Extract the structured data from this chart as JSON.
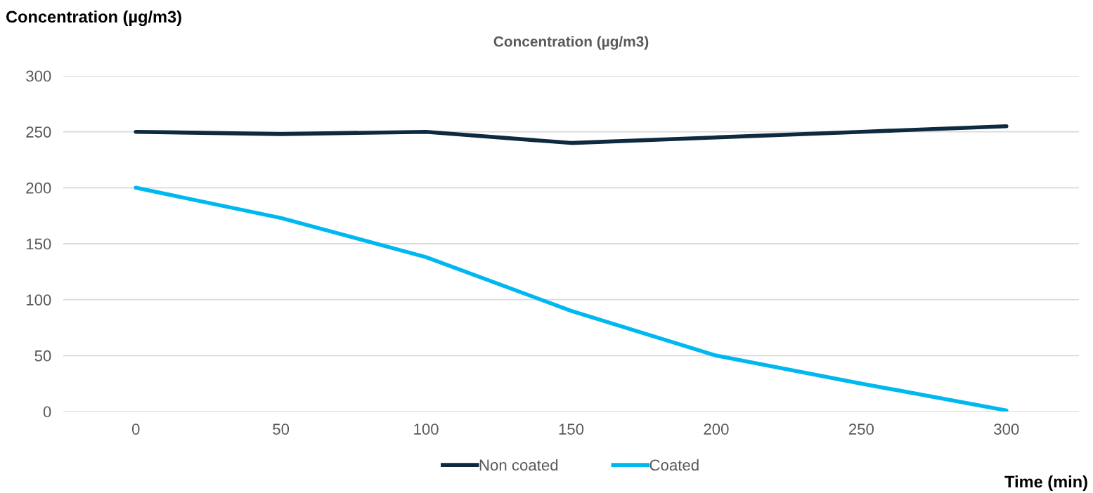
{
  "chart_data": {
    "type": "line",
    "title": "Concentration (µg/m3)",
    "ylabel": "Concentration (µg/m3)",
    "xlabel": "Time (min)",
    "categories": [
      "0",
      "50",
      "100",
      "150",
      "200",
      "250",
      "300"
    ],
    "series": [
      {
        "name": "Non coated",
        "color": "#0d2a3f",
        "values": [
          250,
          248,
          250,
          240,
          245,
          250,
          255
        ]
      },
      {
        "name": "Coated",
        "color": "#00b8f0",
        "values": [
          200,
          173,
          138,
          90,
          50,
          25,
          1
        ]
      }
    ],
    "ylim": [
      0,
      300
    ],
    "yticks": [
      0,
      50,
      100,
      150,
      200,
      250,
      300
    ],
    "grid": "y",
    "legend": "bottom",
    "marker": "none",
    "line_style": "solid"
  }
}
